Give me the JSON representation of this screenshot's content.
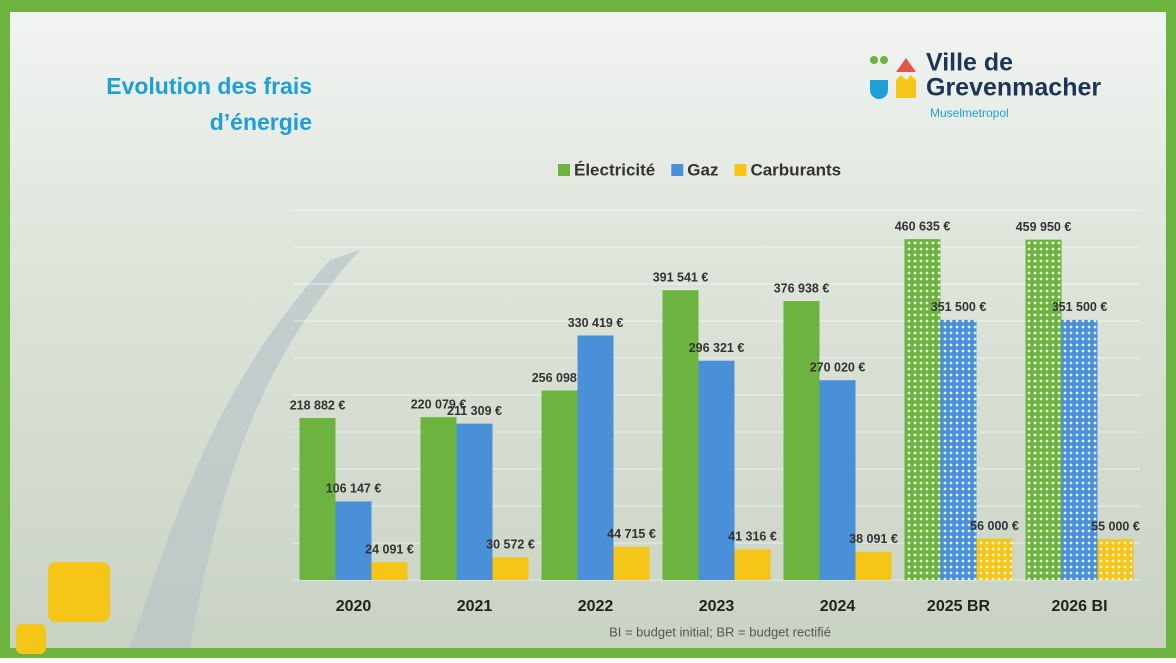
{
  "chart_data": {
    "type": "bar",
    "title": [
      "Evolution des frais",
      "d’énergie"
    ],
    "logo": {
      "name": [
        "Ville de",
        "Grevenmacher"
      ],
      "tagline": "Muselmetropol"
    },
    "footnote": "BI = budget initial;  BR = budget rectifié",
    "categories": [
      "2020",
      "2021",
      "2022",
      "2023",
      "2024",
      "2025 BR",
      "2026 BI"
    ],
    "patterned": [
      false,
      false,
      false,
      false,
      false,
      true,
      true
    ],
    "series": [
      {
        "name": "Électricité",
        "color": "#6db33f",
        "values": [
          218882,
          220079,
          256098,
          391541,
          376938,
          460635,
          459950
        ],
        "value_labels": [
          "218 882 €",
          "220 079 €",
          "256 098 €",
          "391 541 €",
          "376 938 €",
          "460 635 €",
          "459 950 €"
        ]
      },
      {
        "name": "Gaz",
        "color": "#4a90d9",
        "values": [
          106147,
          211309,
          330419,
          296321,
          270020,
          351500,
          351500
        ],
        "value_labels": [
          "106 147 €",
          "211 309 €",
          "330 419 €",
          "296 321 €",
          "270 020 €",
          "351 500 €",
          "351 500 €"
        ]
      },
      {
        "name": "Carburants",
        "color": "#f5c518",
        "values": [
          24091,
          30572,
          44715,
          41316,
          38091,
          56000,
          55000
        ],
        "value_labels": [
          "24 091 €",
          "30 572 €",
          "44 715 €",
          "41 316 €",
          "38 091 €",
          "56 000 €",
          "55 000 €"
        ]
      }
    ],
    "ylim": [
      0,
      500000
    ],
    "yticks": [
      0,
      50000,
      100000,
      150000,
      200000,
      250000,
      300000,
      350000,
      400000,
      450000,
      500000
    ],
    "grid": true
  }
}
